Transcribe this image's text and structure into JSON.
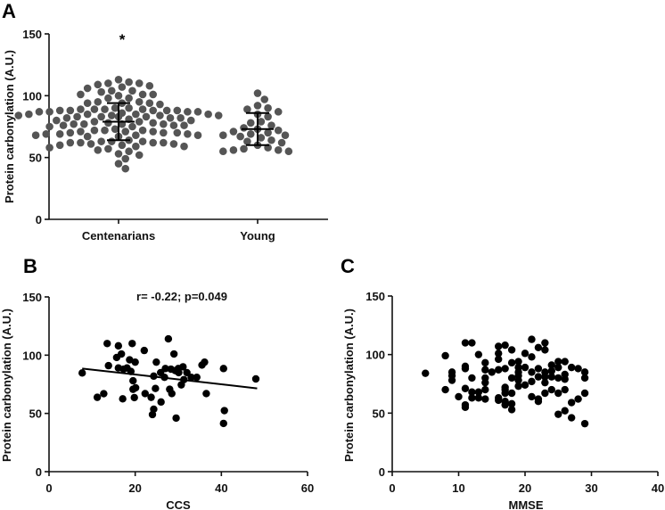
{
  "chart_data": [
    {
      "id": "A",
      "type": "scatter",
      "subtype": "dot-plot-with-mean-sd",
      "panel_label": "A",
      "ylabel": "Protein carbonylation (A.U.)",
      "xlabel": "",
      "ylim": [
        0,
        150
      ],
      "yticks": [
        0,
        50,
        100,
        150
      ],
      "categories": [
        "Centenarians",
        "Young"
      ],
      "annotation": "*",
      "point_color": "#555555",
      "series": [
        {
          "name": "Centenarians",
          "mean": 79,
          "sd_low": 64,
          "sd_high": 94,
          "values": [
            113,
            111,
            110,
            110,
            109,
            108,
            107,
            106,
            104,
            104,
            103,
            101,
            101,
            101,
            100,
            98,
            98,
            95,
            95,
            94,
            94,
            94,
            93,
            90,
            90,
            89,
            89,
            89,
            89,
            88,
            88,
            88,
            88,
            88,
            87,
            87,
            87,
            87,
            86,
            85,
            85,
            85,
            85,
            84,
            84,
            84,
            84,
            83,
            83,
            83,
            83,
            82,
            82,
            82,
            81,
            80,
            80,
            79,
            79,
            78,
            78,
            77,
            77,
            77,
            77,
            76,
            76,
            76,
            75,
            75,
            73,
            72,
            72,
            72,
            71,
            71,
            71,
            70,
            70,
            70,
            69,
            69,
            69,
            68,
            68,
            68,
            67,
            67,
            64,
            63,
            63,
            63,
            62,
            62,
            62,
            62,
            61,
            61,
            60,
            60,
            59,
            59,
            58,
            57,
            56,
            55,
            53,
            52,
            49,
            45,
            41
          ]
        },
        {
          "name": "Young",
          "mean": 73,
          "sd_low": 60,
          "sd_high": 86,
          "values": [
            102,
            97,
            92,
            90,
            89,
            87,
            85,
            83,
            79,
            78,
            76,
            74,
            73,
            72,
            71,
            70,
            69,
            68,
            68,
            67,
            66,
            64,
            63,
            62,
            60,
            58,
            57,
            56,
            56,
            55,
            55
          ]
        }
      ]
    },
    {
      "id": "B",
      "type": "scatter",
      "panel_label": "B",
      "ylabel": "Protein carbonylation (A.U.)",
      "xlabel": "CCS",
      "xlim": [
        0,
        60
      ],
      "xticks": [
        0,
        20,
        40,
        60
      ],
      "ylim": [
        0,
        150
      ],
      "yticks": [
        0,
        50,
        100,
        150
      ],
      "annotation": "r= -0.22; p=0.049",
      "point_color": "#000000",
      "regression": {
        "x": [
          7.7,
          48.3
        ],
        "y": [
          88.5,
          71.5
        ]
      },
      "x": [
        7.7,
        11.2,
        12.7,
        13.5,
        13.8,
        15.7,
        16.1,
        16.1,
        16.8,
        17.1,
        17.3,
        18.1,
        18.7,
        19.0,
        19.3,
        19.5,
        19.5,
        19.8,
        20.0,
        20.1,
        22.1,
        22.3,
        23.7,
        24.0,
        24.3,
        24.3,
        24.7,
        24.9,
        25.9,
        26.0,
        26.8,
        27.0,
        27.7,
        28.0,
        28.3,
        28.5,
        29.0,
        29.3,
        29.5,
        30.0,
        30.1,
        30.7,
        31.1,
        31.3,
        32.0,
        33.0,
        34.3,
        35.5,
        36.1,
        36.5,
        40.5,
        40.5,
        40.7,
        48.0
      ],
      "y": [
        84.7,
        63.8,
        66.9,
        110,
        91,
        98,
        108,
        89,
        101,
        62.5,
        88,
        89,
        96,
        86,
        110,
        78,
        70.7,
        63.6,
        94,
        72,
        104,
        67,
        63.8,
        49,
        53.6,
        82,
        71.4,
        94,
        85,
        59.8,
        81,
        88.5,
        114,
        70.7,
        88,
        67,
        101,
        86.7,
        46,
        88.5,
        85,
        74.5,
        90,
        79,
        85,
        81,
        81,
        91.5,
        94,
        67,
        41.4,
        88.5,
        52.4,
        79.6
      ]
    },
    {
      "id": "C",
      "type": "scatter",
      "panel_label": "C",
      "ylabel": "Protein carbonylation (A.U.)",
      "xlabel": "MMSE",
      "xlim": [
        0,
        40
      ],
      "xticks": [
        0,
        10,
        20,
        30,
        40
      ],
      "ylim": [
        0,
        150
      ],
      "yticks": [
        0,
        50,
        100,
        150
      ],
      "point_color": "#000000",
      "x": [
        5,
        8,
        8,
        9,
        9,
        9,
        10,
        11,
        11,
        11,
        11,
        11,
        11,
        12,
        12,
        12,
        12,
        13,
        13,
        13,
        14,
        14,
        14,
        14,
        14,
        14,
        15,
        16,
        16,
        16,
        16,
        16,
        16,
        17,
        17,
        17,
        17,
        17,
        17,
        17,
        18,
        18,
        18,
        18,
        18,
        18,
        19,
        19,
        19,
        19,
        19,
        19,
        20,
        20,
        20,
        21,
        21,
        21,
        21,
        21,
        22,
        22,
        22,
        22,
        22,
        23,
        23,
        23,
        23,
        23,
        23,
        24,
        24,
        24,
        24,
        25,
        25,
        25,
        25,
        25,
        26,
        26,
        26,
        26,
        26,
        27,
        27,
        27,
        28,
        28,
        29,
        29,
        29,
        29
      ],
      "y": [
        84,
        99,
        70,
        85,
        82,
        78,
        64,
        110,
        90,
        88,
        71,
        57,
        55,
        110,
        80,
        68,
        63,
        100,
        68,
        63,
        93,
        87,
        80,
        76,
        70,
        62,
        85,
        107,
        101,
        96,
        87,
        63,
        61,
        108,
        88,
        72,
        70,
        67,
        60,
        57,
        104,
        93,
        80,
        67,
        58,
        53,
        94,
        89,
        85,
        82,
        78,
        73,
        101,
        89,
        74,
        113,
        98,
        85,
        77,
        64,
        106,
        88,
        81,
        62,
        60,
        110,
        104,
        85,
        81,
        76,
        67,
        91,
        86,
        81,
        70,
        94,
        89,
        80,
        67,
        49,
        94,
        83,
        79,
        70,
        52,
        89,
        59,
        46,
        88,
        62,
        85,
        80,
        67,
        41
      ]
    }
  ]
}
